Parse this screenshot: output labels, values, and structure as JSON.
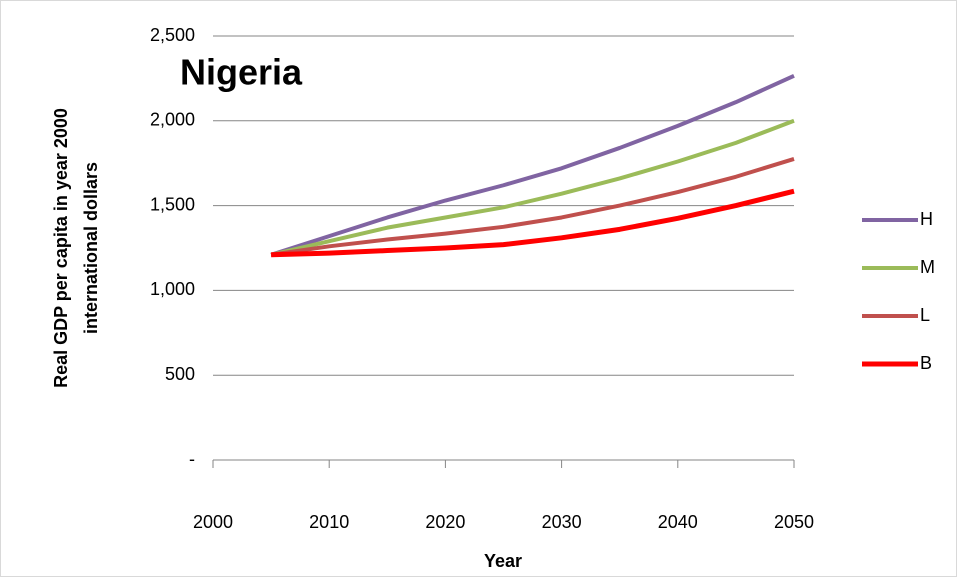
{
  "chart_data": {
    "type": "line",
    "title": "Nigeria",
    "xlabel": "Year",
    "ylabel": [
      "Real GDP per capita in year 2000",
      "international dollars"
    ],
    "x": [
      2005,
      2010,
      2015,
      2020,
      2025,
      2030,
      2035,
      2040,
      2045,
      2050
    ],
    "series": [
      {
        "name": "H",
        "color": "#8064a2",
        "values": [
          1210,
          1320,
          1430,
          1530,
          1620,
          1720,
          1840,
          1970,
          2110,
          2265
        ]
      },
      {
        "name": "M",
        "color": "#9bbb59",
        "values": [
          1210,
          1290,
          1370,
          1430,
          1490,
          1570,
          1660,
          1760,
          1870,
          2000
        ]
      },
      {
        "name": "L",
        "color": "#c0504d",
        "values": [
          1210,
          1260,
          1300,
          1335,
          1375,
          1430,
          1500,
          1580,
          1670,
          1775
        ]
      },
      {
        "name": "B",
        "color": "#ff0000",
        "values": [
          1210,
          1220,
          1235,
          1250,
          1270,
          1310,
          1360,
          1425,
          1500,
          1585
        ]
      }
    ],
    "xlim": [
      2000,
      2050
    ],
    "xticks": [
      2000,
      2010,
      2020,
      2030,
      2040,
      2050
    ],
    "ylim": [
      0,
      2500
    ],
    "yticks": [
      {
        "value": 0,
        "label": "-"
      },
      500,
      {
        "value": 1000,
        "label": "1,000"
      },
      {
        "value": 1500,
        "label": "1,500"
      },
      {
        "value": 2000,
        "label": "2,000"
      },
      {
        "value": 2500,
        "label": "2,500"
      }
    ],
    "grid": true,
    "legend": "right"
  }
}
